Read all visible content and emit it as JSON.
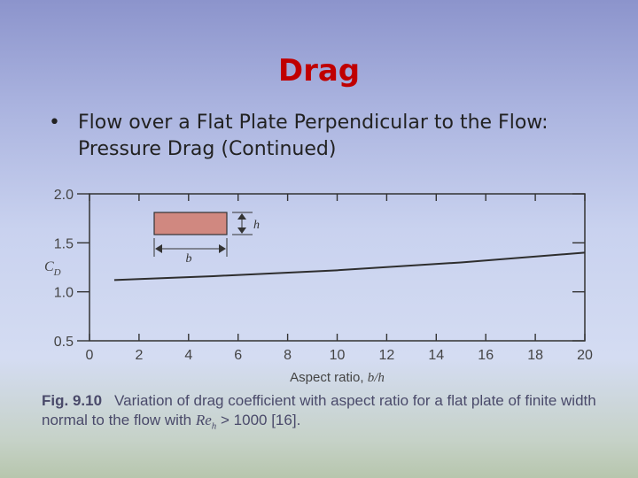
{
  "slide": {
    "title": "Drag",
    "bullet_text": "Flow over a Flat Plate Perpendicular to the Flow: Pressure Drag (Continued)"
  },
  "caption": {
    "fig_label": "Fig. 9.10",
    "text_before": "Variation of drag coefficient with aspect ratio for a flat plate of finite width normal to the flow with ",
    "re_symbol": "Re",
    "re_subscript": "h",
    "text_after": " > 1000 [16]."
  },
  "chart_data": {
    "type": "line",
    "xlabel": "Aspect ratio, b/h",
    "ylabel": "CD",
    "xlim": [
      0,
      20
    ],
    "ylim": [
      0.5,
      2.0
    ],
    "x_ticks": [
      "0",
      "2",
      "4",
      "6",
      "8",
      "10",
      "12",
      "14",
      "16",
      "18",
      "20"
    ],
    "y_ticks": [
      "0.5",
      "1.0",
      "1.5",
      "2.0"
    ],
    "grid": false,
    "series": [
      {
        "x": [
          1,
          2,
          5,
          10,
          15,
          20
        ],
        "y": [
          1.12,
          1.13,
          1.16,
          1.22,
          1.3,
          1.4
        ]
      }
    ],
    "inset": {
      "width_label": "b",
      "height_label": "h",
      "plate_color": "#d08880"
    },
    "colors": {
      "axes": "#333333",
      "line": "#2e2e2e",
      "tick_text": "#444444"
    }
  }
}
